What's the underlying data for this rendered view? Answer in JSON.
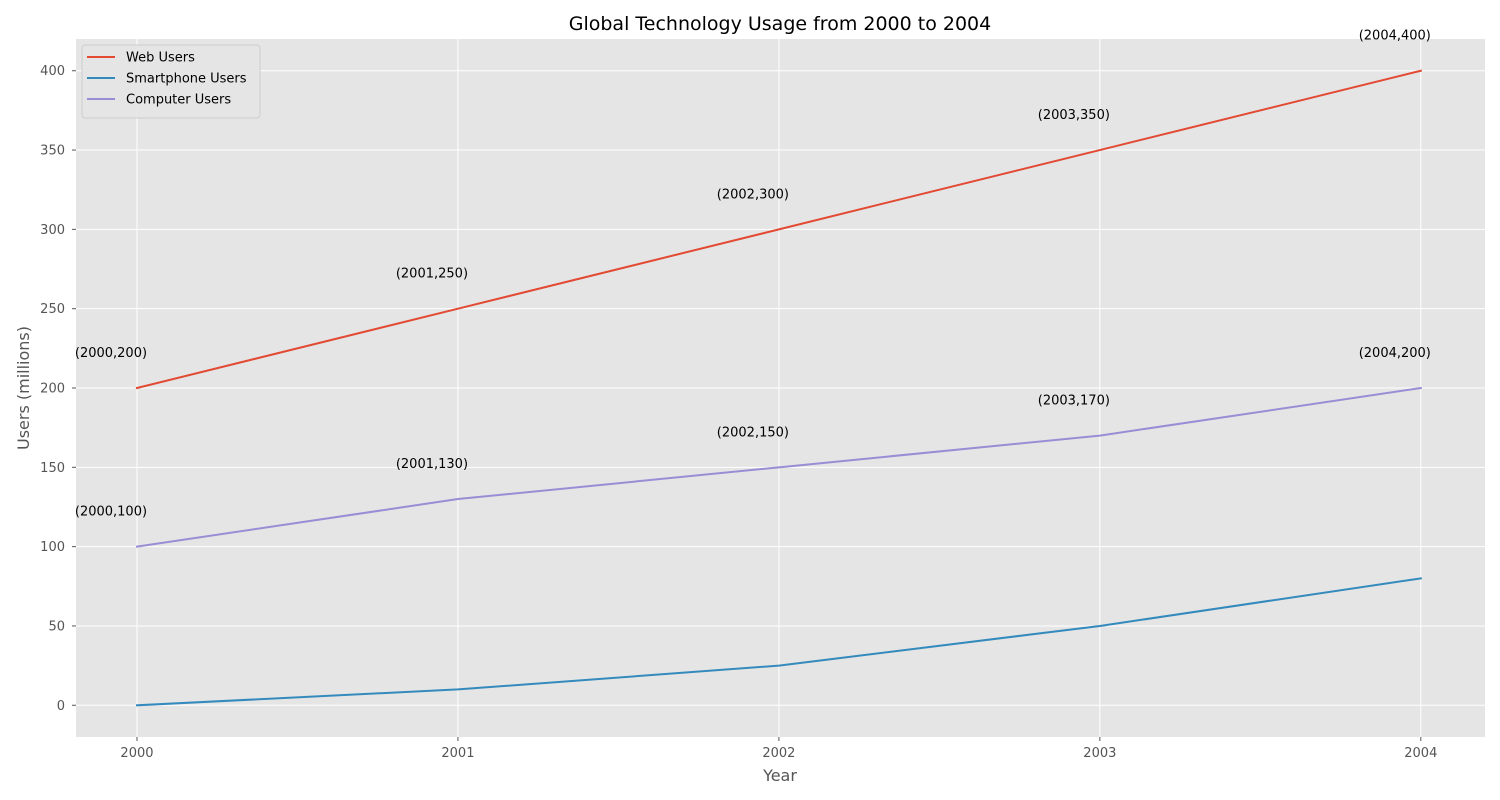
{
  "chart_data": {
    "type": "line",
    "title": "Global Technology Usage from 2000 to 2004",
    "xlabel": "Year",
    "ylabel": "Users (millions)",
    "x": [
      2000,
      2001,
      2002,
      2003,
      2004
    ],
    "x_tick_labels": [
      "2000",
      "2001",
      "2002",
      "2003",
      "2004"
    ],
    "y_ticks": [
      0,
      50,
      100,
      150,
      200,
      250,
      300,
      350,
      400
    ],
    "xlim": [
      1999.81,
      2004.2
    ],
    "ylim": [
      -20,
      420
    ],
    "grid": true,
    "legend_position": "upper-left",
    "background_color": "#e5e5e5",
    "grid_color": "#ffffff",
    "series": [
      {
        "name": "Web Users",
        "color": "#e24a33",
        "values": [
          200,
          250,
          300,
          350,
          400
        ],
        "labels": [
          "(2000,200)",
          "(2001,250)",
          "(2002,300)",
          "(2003,350)",
          "(2004,400)"
        ]
      },
      {
        "name": "Smartphone Users",
        "color": "#348abd",
        "values": [
          0,
          10,
          25,
          50,
          80
        ],
        "labels": []
      },
      {
        "name": "Computer Users",
        "color": "#988ed5",
        "values": [
          100,
          130,
          150,
          170,
          200
        ],
        "labels": [
          "(2000,100)",
          "(2001,130)",
          "(2002,150)",
          "(2003,170)",
          "(2004,200)"
        ]
      }
    ]
  }
}
